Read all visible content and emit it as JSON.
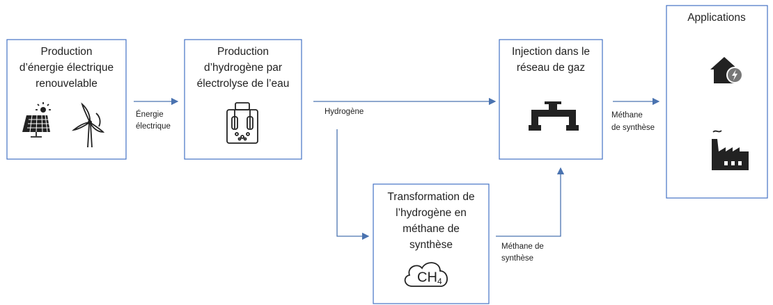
{
  "boxes": [
    {
      "lines": [
        "Production",
        "d’énergie électrique",
        "renouvelable"
      ]
    },
    {
      "lines": [
        "Production",
        "d’hydrogène par",
        "électrolyse de l’eau"
      ]
    },
    {
      "lines": [
        "Injection dans le",
        "réseau de gaz"
      ]
    },
    {
      "lines": [
        "Transformation de",
        "l’hydrogène en",
        "méthane de",
        "synthèse"
      ]
    },
    {
      "lines": [
        "Applications"
      ]
    }
  ],
  "edges": [
    {
      "lines": [
        "Énergie",
        "électrique"
      ]
    },
    {
      "lines": [
        "Hydrogène"
      ]
    },
    {
      "lines": [
        "Méthane de",
        "synthèse"
      ]
    },
    {
      "lines": [
        "Méthane",
        "de synthèse"
      ]
    }
  ],
  "icons": {
    "ch4": "CH"
  }
}
